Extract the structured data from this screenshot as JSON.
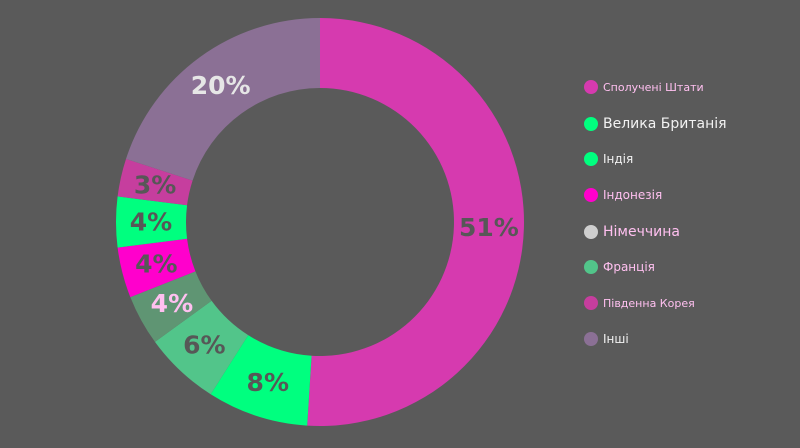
{
  "chart_data": {
    "type": "pie",
    "donut": true,
    "categories": [
      "Сполучені Штати",
      "Велика Британія",
      "Індія",
      "Індонезія",
      "Німеччина",
      "Франція",
      "Південна Корея",
      "Інші"
    ],
    "values": [
      51,
      8,
      6,
      4,
      4,
      4,
      3,
      20
    ],
    "value_labels": [
      "51%",
      "8%",
      "6%",
      "4%",
      "4%",
      "4%",
      "3%",
      "20%"
    ],
    "slices": [
      {
        "label": "Сполучені Штати",
        "value": 51,
        "text": "51%",
        "color": "#d63aaf",
        "label_color": "#575757"
      },
      {
        "label": "Велика Британія",
        "value": 8,
        "text": "8%",
        "color": "#00ff7f",
        "label_color": "#575757"
      },
      {
        "label": "Індія",
        "value": 6,
        "text": "6%",
        "color": "#52c58a",
        "label_color": "#575757"
      },
      {
        "label": "Індонезія",
        "value": 4,
        "text": "4%",
        "color": "#5f9573",
        "label_color": "#ffc0f0"
      },
      {
        "label": "Німеччина",
        "value": 4,
        "text": "4%",
        "color": "#ff00cc",
        "label_color": "#575757"
      },
      {
        "label": "Франція",
        "value": 4,
        "text": "4%",
        "color": "#00ff7f",
        "label_color": "#575757"
      },
      {
        "label": "Південна Корея",
        "value": 3,
        "text": "3%",
        "color": "#c63e9e",
        "label_color": "#575757"
      },
      {
        "label": "Інші",
        "value": 20,
        "text": "20%",
        "color": "#8b7095",
        "label_color": "#e6e6e6"
      }
    ],
    "legend_position": "right",
    "legend": [
      {
        "label": "Сполучені Штати",
        "color": "#d63aaf",
        "text_color": "#ffc0f0"
      },
      {
        "label": "Велика Британія",
        "color": "#00ff7f",
        "text_color": "#f2f2f2"
      },
      {
        "label": "Індія",
        "color": "#00ff7f",
        "text_color": "#f2f2f2"
      },
      {
        "label": "Індонезія",
        "color": "#ff00cc",
        "text_color": "#ffc0f0"
      },
      {
        "label": "Німеччина",
        "color": "#cfcfcf",
        "text_color": "#ffc0f0"
      },
      {
        "label": "Франція",
        "color": "#52c58a",
        "text_color": "#ffc0f0"
      },
      {
        "label": "Південна Корея",
        "color": "#c63e9e",
        "text_color": "#ffc0f0"
      },
      {
        "label": "Інші",
        "color": "#8b7095",
        "text_color": "#f2f2f2"
      }
    ],
    "background": "#5a5a5a"
  }
}
